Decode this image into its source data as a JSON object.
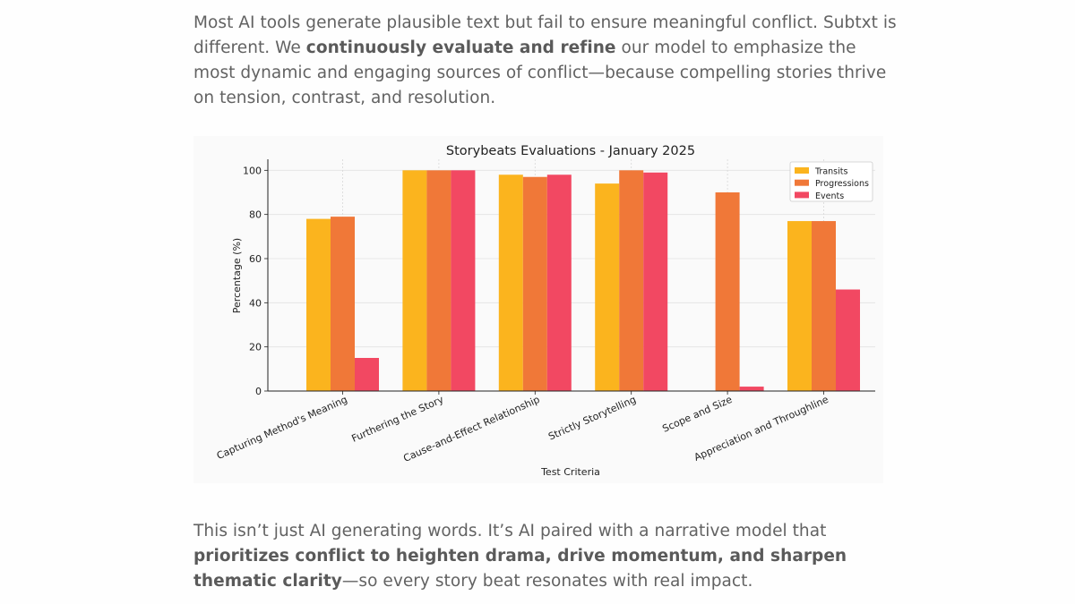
{
  "intro": {
    "t1": "Most AI tools generate plausible text but fail to ensure meaningful conflict. Subtxt is different. We ",
    "bold": "continuously evaluate and refine",
    "t2": " our model to emphasize the most dynamic and engaging sources of conflict—because compelling stories thrive on tension, contrast, and resolution."
  },
  "outro": {
    "t1": "This isn’t just AI generating words. It’s AI paired with a narrative model that ",
    "bold": "prioritizes conflict to heighten drama, drive momentum, and sharpen thematic clarity",
    "t2": "—so every story beat resonates with real impact."
  },
  "chart_data": {
    "type": "bar",
    "title": "Storybeats Evaluations - January 2025",
    "xlabel": "Test Criteria",
    "ylabel": "Percentage (%)",
    "ylim": [
      0,
      105
    ],
    "yticks": [
      0,
      20,
      40,
      60,
      80,
      100
    ],
    "grid": true,
    "legend": "top-right",
    "categories": [
      "Capturing Method's Meaning",
      "Furthering the Story",
      "Cause-and-Effect Relationship",
      "Strictly Storytelling",
      "Scope and Size",
      "Appreciation and Throughline"
    ],
    "series": [
      {
        "name": "Transits",
        "color": "#fbb41e",
        "values": [
          78,
          100,
          98,
          94,
          0,
          77
        ]
      },
      {
        "name": "Progressions",
        "color": "#f07838",
        "values": [
          79,
          100,
          97,
          100,
          90,
          77
        ]
      },
      {
        "name": "Events",
        "color": "#f24862",
        "values": [
          15,
          100,
          98,
          99,
          2,
          46
        ]
      }
    ]
  }
}
